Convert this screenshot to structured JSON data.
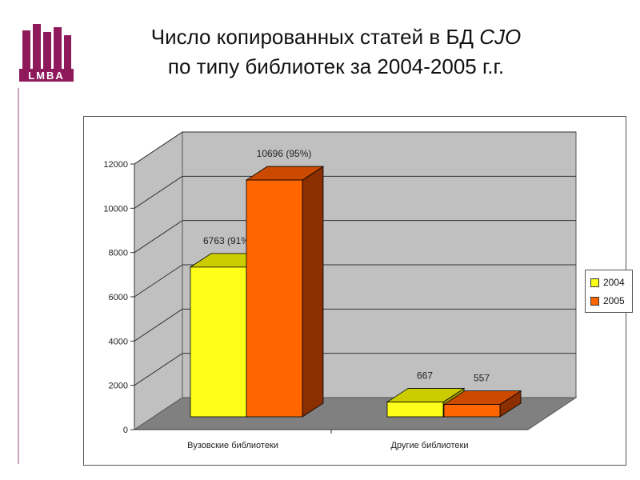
{
  "title": {
    "line1_prefix": "Число копированных статей в БД ",
    "line1_italic": "CJO",
    "line2": "по типу библиотек за 2004-2005 г.г."
  },
  "logo": {
    "text": "LMBA"
  },
  "colors": {
    "s2004_front": "#ffff1a",
    "s2004_top": "#cccc00",
    "s2004_side": "#9a9a00",
    "s2005_front": "#ff6600",
    "s2005_top": "#cc4a00",
    "s2005_side": "#8b2e00",
    "wall": "#c0c0c0",
    "floor": "#808080"
  },
  "chart_data": {
    "type": "bar",
    "categories": [
      "Вузовские библиотеки",
      "Другие библиотеки"
    ],
    "series": [
      {
        "name": "2004",
        "values": [
          6763,
          667
        ],
        "labels": [
          "6763 (91%)",
          "667"
        ]
      },
      {
        "name": "2005",
        "values": [
          10696,
          557
        ],
        "labels": [
          "10696 (95%)",
          "557"
        ]
      }
    ],
    "ylim": [
      0,
      12000
    ],
    "yticks": [
      "0",
      "2000",
      "4000",
      "6000",
      "8000",
      "10000",
      "12000"
    ],
    "grid": true,
    "legend": "right"
  }
}
